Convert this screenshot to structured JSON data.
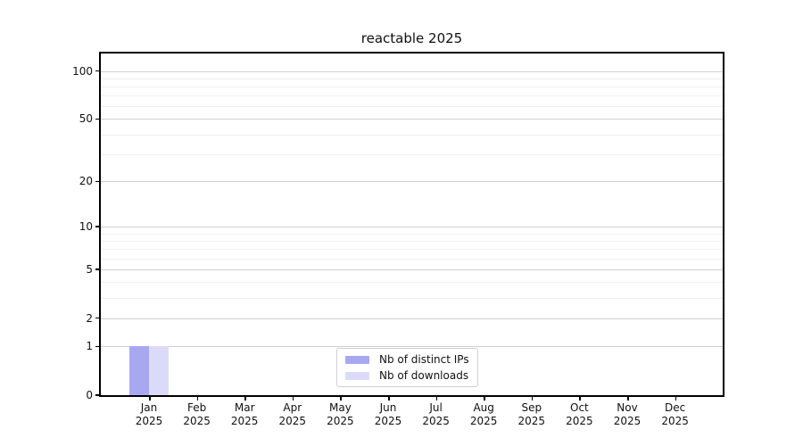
{
  "title": "reactable 2025",
  "chart_data": {
    "type": "bar",
    "title": "reactable 2025",
    "categories": [
      "Jan 2025",
      "Feb 2025",
      "Mar 2025",
      "Apr 2025",
      "May 2025",
      "Jun 2025",
      "Jul 2025",
      "Aug 2025",
      "Sep 2025",
      "Oct 2025",
      "Nov 2025",
      "Dec 2025"
    ],
    "series": [
      {
        "name": "Nb of distinct IPs",
        "color": "#a8a8f2",
        "values": [
          1,
          0,
          0,
          0,
          0,
          0,
          0,
          0,
          0,
          0,
          0,
          0
        ]
      },
      {
        "name": "Nb of downloads",
        "color": "#dbdbf9",
        "values": [
          1,
          0,
          0,
          0,
          0,
          0,
          0,
          0,
          0,
          0,
          0,
          0
        ]
      }
    ],
    "yscale": "log1p",
    "ylim": [
      0,
      113
    ],
    "y_major_ticks": [
      0,
      1,
      2,
      5,
      10,
      20,
      50,
      100
    ],
    "y_minor_ticks": [
      3,
      4,
      6,
      7,
      8,
      9,
      30,
      40,
      60,
      70,
      80,
      90
    ],
    "grid": true,
    "legend_position": "lower center",
    "background_color": "#ffffff",
    "axis_color": "#000000",
    "major_grid_color": "#d0d0d0",
    "minor_grid_color": "#f0f0f0"
  }
}
